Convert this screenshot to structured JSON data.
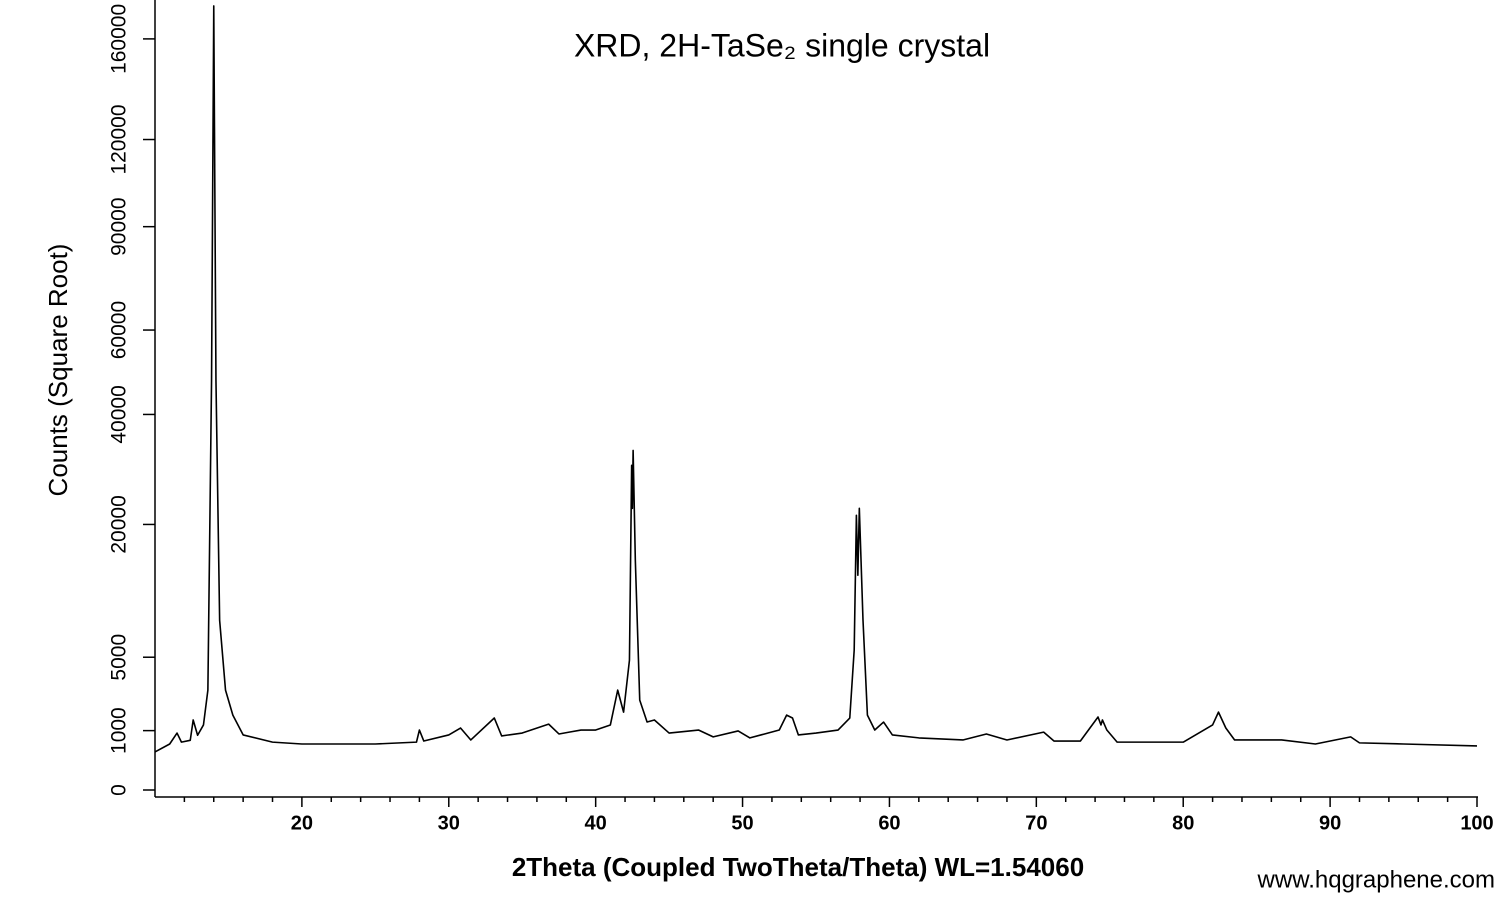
{
  "chart_data": {
    "type": "line",
    "title": "XRD, 2H-TaSe₂ single crystal",
    "x_label": "2Theta (Coupled TwoTheta/Theta) WL=1.54060",
    "y_label": "Counts (Square Root)",
    "annotation": "www.hqgraphene.com",
    "y_scale": "sqrt",
    "xlim": [
      10,
      100
    ],
    "ylim": [
      0,
      177000
    ],
    "xticks": [
      20,
      30,
      40,
      50,
      60,
      70,
      80,
      90,
      100
    ],
    "xminor": [
      12,
      14,
      16,
      18,
      22,
      24,
      26,
      28,
      32,
      34,
      36,
      38,
      42,
      44,
      46,
      48,
      52,
      54,
      56,
      58,
      62,
      64,
      66,
      68,
      72,
      74,
      76,
      78,
      82,
      84,
      86,
      88,
      92,
      94,
      96,
      98
    ],
    "yticks": [
      0,
      1000,
      5000,
      20000,
      40000,
      60000,
      90000,
      120000,
      160000
    ],
    "color": "#000000",
    "x": [
      10,
      11,
      11.5,
      11.8,
      12.4,
      12.6,
      12.9,
      13.3,
      13.6,
      13.85,
      14.0,
      14.15,
      14.4,
      14.8,
      15.3,
      16,
      18,
      20,
      25,
      27.8,
      28,
      28.3,
      30,
      30.8,
      31.5,
      33.1,
      33.6,
      35,
      36.8,
      37.5,
      38.2,
      39,
      40,
      41,
      41.5,
      41.9,
      42.3,
      42.45,
      42.5,
      42.55,
      42.7,
      43,
      43.5,
      44,
      45,
      47,
      48,
      49.7,
      50.5,
      52.5,
      53,
      53.4,
      53.8,
      55,
      56.5,
      57.3,
      57.6,
      57.75,
      57.85,
      57.95,
      58.2,
      58.5,
      59,
      59.6,
      60.2,
      62,
      65,
      66.6,
      68,
      70.5,
      71.2,
      73,
      74.2,
      74.4,
      74.5,
      74.8,
      75.5,
      80,
      82,
      82.4,
      82.9,
      83.5,
      86.7,
      89,
      91.4,
      92,
      95,
      100
    ],
    "values": [
      410,
      600,
      920,
      650,
      700,
      1390,
      850,
      1200,
      2830,
      47560,
      174350,
      47560,
      8180,
      2830,
      1590,
      860,
      650,
      600,
      600,
      650,
      1020,
      680,
      860,
      1090,
      710,
      1470,
      830,
      920,
      1230,
      890,
      950,
      1020,
      1020,
      1200,
      2830,
      1720,
      4780,
      29890,
      22500,
      32710,
      14970,
      2290,
      1310,
      1390,
      920,
      1020,
      800,
      990,
      770,
      1020,
      1590,
      1470,
      860,
      920,
      1020,
      1470,
      5550,
      21400,
      13080,
      22500,
      8180,
      1590,
      1020,
      1310,
      860,
      770,
      710,
      890,
      710,
      950,
      680,
      680,
      1510,
      1200,
      1390,
      1020,
      650,
      650,
      1200,
      1720,
      1090,
      710,
      710,
      600,
      800,
      630,
      600,
      550
    ]
  }
}
